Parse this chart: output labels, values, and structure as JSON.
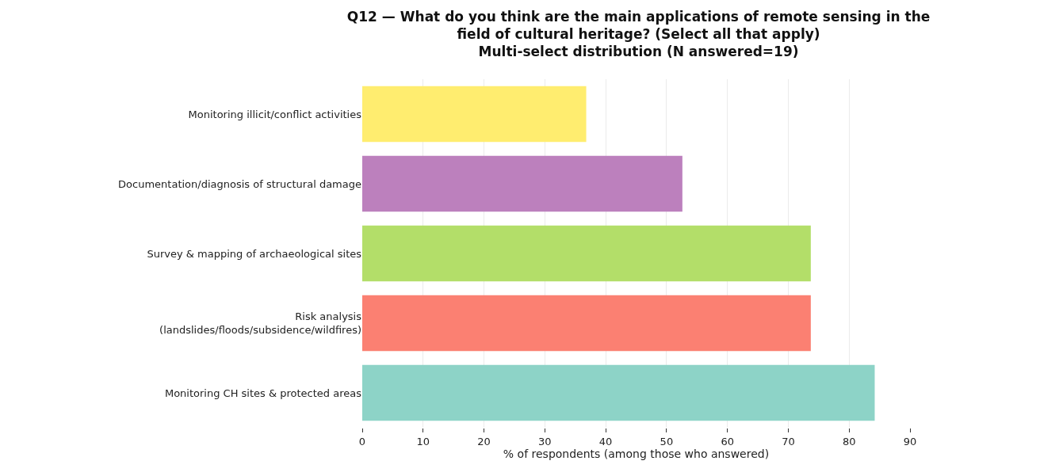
{
  "chart_data": {
    "type": "bar",
    "orientation": "horizontal",
    "title": "Q12 — What do you think are the main applications of remote sensing in the\nfield of cultural heritage? (Select all that apply)\nMulti-select distribution (N answered=19)",
    "xlabel": "% of respondents (among those who answered)",
    "categories": [
      "Monitoring illicit/conflict activities",
      "Documentation/diagnosis of structural damage",
      "Survey & mapping of archaeological sites",
      "Risk analysis\n(landslides/floods/subsidence/wildfires)",
      "Monitoring CH sites & protected areas"
    ],
    "values": [
      36.8,
      52.6,
      73.7,
      73.7,
      84.2
    ],
    "colors": [
      "#ffed6f",
      "#bc80bd",
      "#b3de69",
      "#fb8072",
      "#8dd3c7"
    ],
    "xlim": [
      0,
      90
    ],
    "xticks": [
      0,
      10,
      20,
      30,
      40,
      50,
      60,
      70,
      80,
      90
    ],
    "grid": "x"
  }
}
